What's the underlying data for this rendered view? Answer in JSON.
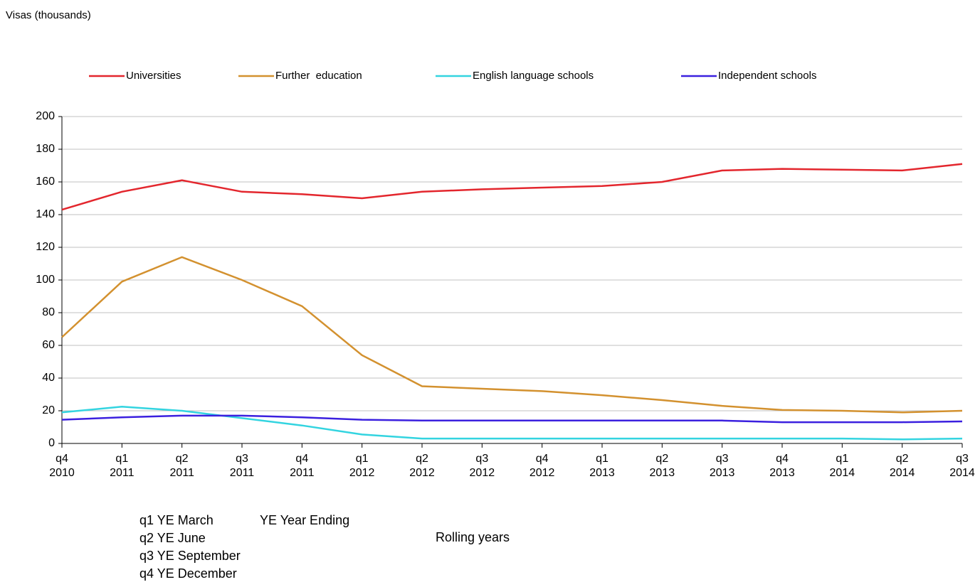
{
  "chart_data": {
    "type": "line",
    "y_label": "Visas (thousands)",
    "x_label": "Rolling years",
    "notes": [
      "q1 YE March",
      "q2 YE June",
      "q3 YE September",
      "q4 YE December"
    ],
    "abbreviation_note": "YE Year Ending",
    "categories": [
      [
        "q4",
        "2010"
      ],
      [
        "q1",
        "2011"
      ],
      [
        "q2",
        "2011"
      ],
      [
        "q3",
        "2011"
      ],
      [
        "q4",
        "2011"
      ],
      [
        "q1",
        "2012"
      ],
      [
        "q2",
        "2012"
      ],
      [
        "q3",
        "2012"
      ],
      [
        "q4",
        "2012"
      ],
      [
        "q1",
        "2013"
      ],
      [
        "q2",
        "2013"
      ],
      [
        "q3",
        "2013"
      ],
      [
        "q4",
        "2013"
      ],
      [
        "q1",
        "2014"
      ],
      [
        "q2",
        "2014"
      ],
      [
        "q3",
        "2014"
      ]
    ],
    "series": [
      {
        "name": "Universities",
        "color": "#e3262d",
        "values": [
          143,
          154,
          161,
          154,
          152.5,
          150,
          154,
          155.5,
          156.5,
          157.5,
          160,
          167,
          168,
          167.5,
          167,
          171
        ]
      },
      {
        "name": "Further  education",
        "color": "#d3912f",
        "values": [
          65,
          99,
          114,
          100,
          84,
          54,
          35,
          33.5,
          32,
          29.5,
          26.5,
          23,
          20.5,
          20,
          19,
          20
        ]
      },
      {
        "name": "English language schools",
        "color": "#33d4e0",
        "values": [
          19,
          22.5,
          20,
          15.5,
          11,
          5.5,
          3,
          3,
          3,
          3,
          3,
          3,
          3,
          3,
          2.5,
          3
        ]
      },
      {
        "name": "Independent schools",
        "color": "#3b20df",
        "values": [
          14.5,
          16,
          17,
          17,
          16,
          14.5,
          14,
          14,
          14,
          14,
          14,
          14,
          13,
          13,
          13,
          13.5
        ]
      }
    ],
    "ylim": [
      0,
      200
    ],
    "yticks": [
      0,
      20,
      40,
      60,
      80,
      100,
      120,
      140,
      160,
      180,
      200
    ],
    "grid": true,
    "legend": "top"
  }
}
